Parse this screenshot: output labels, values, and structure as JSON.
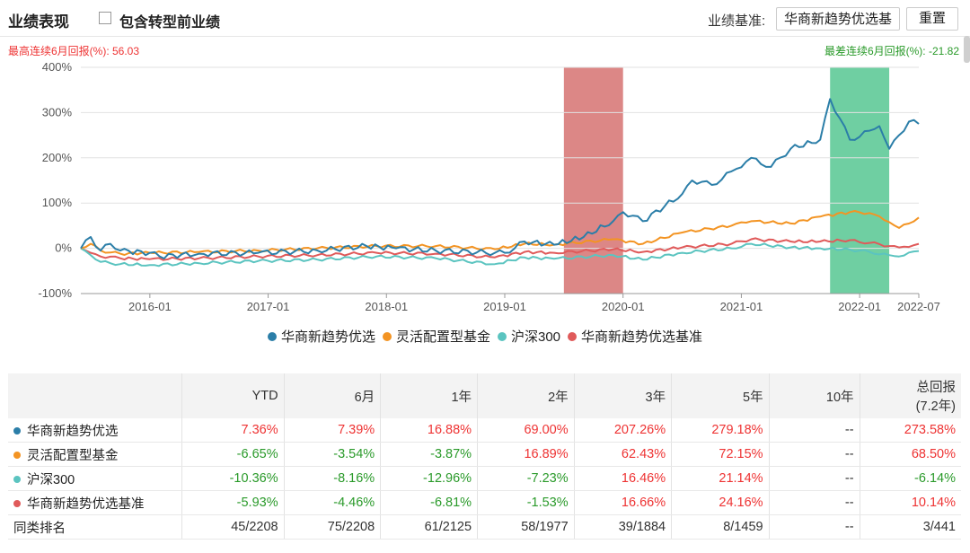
{
  "header": {
    "title": "业绩表现",
    "include_label": "包含转型前业绩",
    "benchmark_label": "业绩基准:",
    "benchmark_value": "华商新趋势优选基",
    "reset_label": "重置"
  },
  "best_text": "最高连续6月回报(%):  56.03",
  "worst_text": "最差连续6月回报(%):  -21.82",
  "colors": {
    "fund": "#2b7ea8",
    "category": "#f39423",
    "hs300": "#5bc4c0",
    "bench": "#e05a5a",
    "best_band": "#dc8786",
    "worst_band": "#6fcfa2",
    "pos": "#e33333",
    "neg": "#2a9a2a"
  },
  "chart_data": {
    "type": "line",
    "title": "",
    "xlabel": "",
    "ylabel": "",
    "x_range": [
      "2015-06",
      "2022-07"
    ],
    "ylim": [
      -100,
      400
    ],
    "y_ticks": [
      "400%",
      "300%",
      "200%",
      "100%",
      "0%",
      "-100%"
    ],
    "y_tick_values": [
      400,
      300,
      200,
      100,
      0,
      -100
    ],
    "x_ticks": [
      "2016-01",
      "2017-01",
      "2018-01",
      "2019-01",
      "2020-01",
      "2021-01",
      "2022-01",
      "2022-07"
    ],
    "x_tick_dates": [
      "2016-01",
      "2017-01",
      "2018-01",
      "2019-01",
      "2020-01",
      "2021-01",
      "2022-01",
      "2022-07"
    ],
    "bands": [
      {
        "name": "best",
        "start": "2019-07",
        "end": "2020-01",
        "color": "#dc8786"
      },
      {
        "name": "worst",
        "start": "2021-10",
        "end": "2022-04",
        "color": "#6fcfa2"
      }
    ],
    "series": [
      {
        "name": "华商新趋势优选",
        "color": "#2b7ea8",
        "x": [
          "2015-06",
          "2015-07",
          "2015-08",
          "2015-09",
          "2015-10",
          "2016-01",
          "2016-02",
          "2016-06",
          "2016-12",
          "2017-06",
          "2017-11",
          "2018-02",
          "2018-06",
          "2018-12",
          "2019-01",
          "2019-03",
          "2019-06",
          "2019-09",
          "2019-12",
          "2020-01",
          "2020-03",
          "2020-07",
          "2020-08",
          "2020-10",
          "2020-12",
          "2021-02",
          "2021-04",
          "2021-06",
          "2021-09",
          "2021-10",
          "2021-12",
          "2022-02",
          "2022-03",
          "2022-04",
          "2022-05",
          "2022-06",
          "2022-07"
        ],
        "y": [
          0,
          25,
          -5,
          10,
          -5,
          -10,
          -18,
          -12,
          -10,
          -5,
          5,
          0,
          -5,
          -10,
          -10,
          15,
          8,
          25,
          60,
          80,
          60,
          120,
          150,
          140,
          170,
          200,
          180,
          220,
          240,
          330,
          240,
          260,
          270,
          220,
          250,
          280,
          275
        ]
      },
      {
        "name": "灵活配置型基金",
        "color": "#f39423",
        "x": [
          "2015-06",
          "2015-07",
          "2015-08",
          "2015-10",
          "2016-01",
          "2016-06",
          "2016-12",
          "2017-06",
          "2017-12",
          "2018-06",
          "2018-12",
          "2019-03",
          "2019-06",
          "2019-12",
          "2020-03",
          "2020-07",
          "2020-12",
          "2021-02",
          "2021-06",
          "2021-09",
          "2021-12",
          "2022-02",
          "2022-04",
          "2022-05",
          "2022-07"
        ],
        "y": [
          0,
          10,
          -5,
          -12,
          -10,
          -8,
          -5,
          0,
          5,
          5,
          -2,
          10,
          8,
          20,
          10,
          35,
          50,
          60,
          55,
          70,
          80,
          78,
          58,
          45,
          68
        ]
      },
      {
        "name": "沪深300",
        "color": "#5bc4c0",
        "x": [
          "2015-06",
          "2015-07",
          "2015-08",
          "2015-10",
          "2016-01",
          "2016-06",
          "2016-12",
          "2017-06",
          "2017-12",
          "2018-06",
          "2018-12",
          "2019-03",
          "2019-06",
          "2019-12",
          "2020-03",
          "2020-07",
          "2020-12",
          "2021-02",
          "2021-06",
          "2021-09",
          "2021-12",
          "2022-02",
          "2022-04",
          "2022-05",
          "2022-07"
        ],
        "y": [
          0,
          -15,
          -30,
          -35,
          -37,
          -33,
          -28,
          -25,
          -18,
          -22,
          -35,
          -20,
          -23,
          -15,
          -25,
          -10,
          0,
          10,
          2,
          0,
          -3,
          -8,
          -15,
          -18,
          -6
        ]
      },
      {
        "name": "华商新趋势优选基准",
        "color": "#e05a5a",
        "x": [
          "2015-06",
          "2015-07",
          "2015-08",
          "2015-10",
          "2016-01",
          "2016-06",
          "2016-12",
          "2017-06",
          "2017-12",
          "2018-06",
          "2018-12",
          "2019-03",
          "2019-06",
          "2019-12",
          "2020-03",
          "2020-07",
          "2020-12",
          "2021-02",
          "2021-06",
          "2021-09",
          "2021-12",
          "2022-02",
          "2022-04",
          "2022-05",
          "2022-07"
        ],
        "y": [
          0,
          -10,
          -18,
          -22,
          -24,
          -22,
          -18,
          -15,
          -10,
          -12,
          -20,
          -8,
          -10,
          -2,
          -8,
          2,
          10,
          20,
          15,
          15,
          18,
          12,
          5,
          2,
          10
        ]
      }
    ]
  },
  "table": {
    "headers": [
      "",
      "YTD",
      "6月",
      "1年",
      "2年",
      "3年",
      "5年",
      "10年",
      "总回报"
    ],
    "total_note": "(7.2年)",
    "rows": [
      {
        "name": "华商新趋势优选",
        "color": "#2b7ea8",
        "values": [
          "7.36%",
          "7.39%",
          "16.88%",
          "69.00%",
          "207.26%",
          "279.18%",
          "--",
          "273.58%"
        ]
      },
      {
        "name": "灵活配置型基金",
        "color": "#f39423",
        "values": [
          "-6.65%",
          "-3.54%",
          "-3.87%",
          "16.89%",
          "62.43%",
          "72.15%",
          "--",
          "68.50%"
        ]
      },
      {
        "name": "沪深300",
        "color": "#5bc4c0",
        "values": [
          "-10.36%",
          "-8.16%",
          "-12.96%",
          "-7.23%",
          "16.46%",
          "21.14%",
          "--",
          "-6.14%"
        ]
      },
      {
        "name": "华商新趋势优选基准",
        "color": "#e05a5a",
        "values": [
          "-5.93%",
          "-4.46%",
          "-6.81%",
          "-1.53%",
          "16.66%",
          "24.16%",
          "--",
          "10.14%"
        ]
      },
      {
        "name": "同类排名",
        "color": "",
        "values": [
          "45/2208",
          "75/2208",
          "61/2125",
          "58/1977",
          "39/1884",
          "8/1459",
          "--",
          "3/441"
        ]
      }
    ]
  }
}
